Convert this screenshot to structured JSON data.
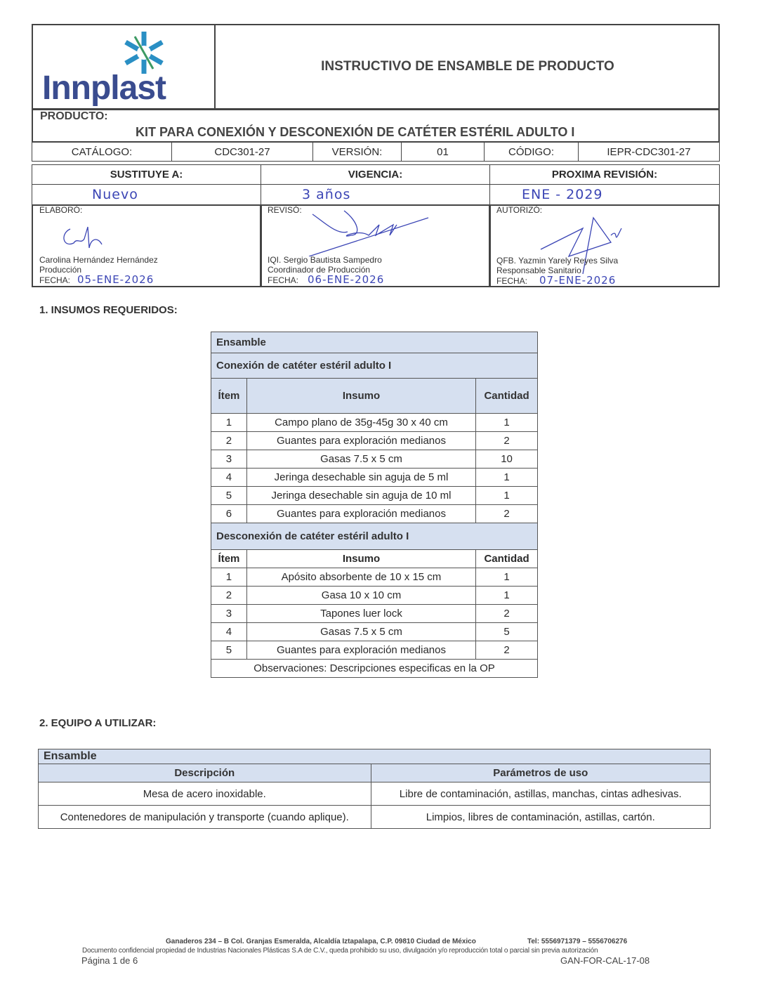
{
  "header": {
    "logo_text": "Innplast",
    "title": "INSTRUCTIVO DE ENSAMBLE DE PRODUCTO",
    "product_label": "PRODUCTO:",
    "product_name": "KIT PARA CONEXIÓN Y DESCONEXIÓN DE CATÉTER ESTÉRIL ADULTO I",
    "catalog_label": "CATÁLOGO:",
    "catalog": "CDC301-27",
    "version_label": "VERSIÓN:",
    "version": "01",
    "code_label": "CÓDIGO:",
    "code": "IEPR-CDC301-27",
    "replaces_label": "SUSTITUYE A:",
    "replaces": "Nuevo",
    "validity_label": "VIGENCIA:",
    "validity": "3 años",
    "next_rev_label": "PROXIMA REVISIÓN:",
    "next_rev": "ENE - 2029"
  },
  "signatures": [
    {
      "role_label": "ELABORÓ:",
      "name": "Carolina Hernández Hernández",
      "position": "Producción",
      "date_label": "FECHA:",
      "date": "05-ENE-2026"
    },
    {
      "role_label": "REVISÓ:",
      "name": "IQI. Sergio Bautista Sampedro",
      "position": "Coordinador de Producción",
      "date_label": "FECHA:",
      "date": "06-ENE-2026"
    },
    {
      "role_label": "AUTORIZÓ:",
      "name": "QFB. Yazmin Yarely Reyes Silva",
      "position": "Responsable Sanitario",
      "date_label": "FECHA:",
      "date": "07-ENE-2026"
    }
  ],
  "section1": {
    "title": "1.  INSUMOS REQUERIDOS:",
    "assembly": "Ensamble",
    "group1": "Conexión de catéter estéril adulto I",
    "col_item": "Ítem",
    "col_insumo": "Insumo",
    "col_qty": "Cantidad",
    "rows1": [
      [
        "1",
        "Campo plano de 35g-45g 30 x 40 cm",
        "1"
      ],
      [
        "2",
        "Guantes para exploración medianos",
        "2"
      ],
      [
        "3",
        "Gasas 7.5 x 5 cm",
        "10"
      ],
      [
        "4",
        "Jeringa desechable sin aguja de 5 ml",
        "1"
      ],
      [
        "5",
        "Jeringa desechable sin aguja de 10 ml",
        "1"
      ],
      [
        "6",
        "Guantes para exploración medianos",
        "2"
      ]
    ],
    "group2": "Desconexión de catéter estéril adulto I",
    "rows2": [
      [
        "1",
        "Apósito absorbente de 10 x 15 cm",
        "1"
      ],
      [
        "2",
        "Gasa 10 x 10 cm",
        "1"
      ],
      [
        "3",
        "Tapones luer lock",
        "2"
      ],
      [
        "4",
        "Gasas 7.5 x 5 cm",
        "5"
      ],
      [
        "5",
        "Guantes para exploración medianos",
        "2"
      ]
    ],
    "observations": "Observaciones:  Descripciones especificas en la OP"
  },
  "section2": {
    "title": "2.  EQUIPO A UTILIZAR:",
    "assembly": "Ensamble",
    "col_desc": "Descripción",
    "col_params": "Parámetros de uso",
    "rows": [
      [
        "Mesa de acero inoxidable.",
        "Libre de contaminación, astillas, manchas, cintas adhesivas."
      ],
      [
        "Contenedores de manipulación y transporte (cuando aplique).",
        "Limpios, libres de contaminación, astillas, cartón."
      ]
    ]
  },
  "footer": {
    "address": "Ganaderos 234 – B Col. Granjas Esmeralda, Alcaldía Iztapalapa, C.P. 09810 Ciudad de México",
    "phone": "Tel: 5556971379 – 5556706276",
    "disclaimer": "Documento confidencial propiedad de Industrias Nacionales Plásticas S.A de C.V., queda prohibido su uso, divulgación y/o reproducción total o parcial sin previa autorización",
    "page": "Página 1 de 6",
    "form_code": "GAN-FOR-CAL-17-08"
  }
}
